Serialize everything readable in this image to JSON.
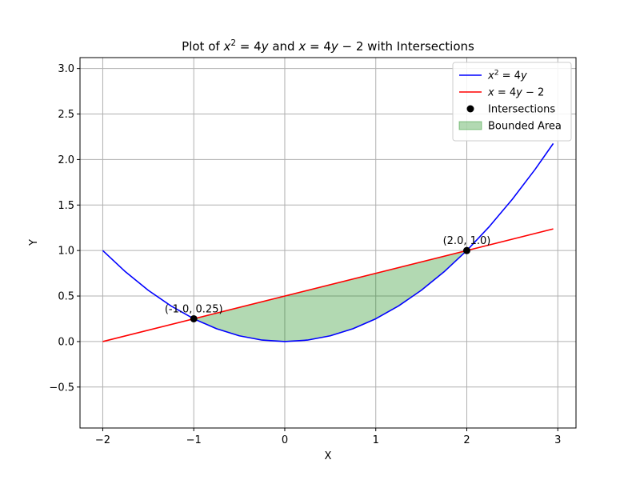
{
  "chart_data": {
    "type": "line",
    "title_parts": [
      {
        "text": "Plot of ",
        "style": "normal"
      },
      {
        "text": "x",
        "style": "italic"
      },
      {
        "text": "2",
        "style": "sup"
      },
      {
        "text": " = 4",
        "style": "normal"
      },
      {
        "text": "y",
        "style": "italic"
      },
      {
        "text": " and ",
        "style": "normal"
      },
      {
        "text": "x",
        "style": "italic"
      },
      {
        "text": " = 4",
        "style": "normal"
      },
      {
        "text": "y",
        "style": "italic"
      },
      {
        "text": " − 2 with Intersections",
        "style": "normal"
      }
    ],
    "xlabel": "X",
    "ylabel": "Y",
    "xlim": [
      -2.25,
      3.2
    ],
    "ylim": [
      -0.95,
      3.12
    ],
    "x_ticks": [
      {
        "value": -2,
        "label": "−2"
      },
      {
        "value": -1,
        "label": "−1"
      },
      {
        "value": 0,
        "label": "0"
      },
      {
        "value": 1,
        "label": "1"
      },
      {
        "value": 2,
        "label": "2"
      },
      {
        "value": 3,
        "label": "3"
      }
    ],
    "y_ticks": [
      {
        "value": -0.5,
        "label": "−0.5"
      },
      {
        "value": 0.0,
        "label": "0.0"
      },
      {
        "value": 0.5,
        "label": "0.5"
      },
      {
        "value": 1.0,
        "label": "1.0"
      },
      {
        "value": 1.5,
        "label": "1.5"
      },
      {
        "value": 2.0,
        "label": "2.0"
      },
      {
        "value": 2.5,
        "label": "2.5"
      },
      {
        "value": 3.0,
        "label": "3.0"
      }
    ],
    "grid": true,
    "legend_position": "top-right",
    "series": [
      {
        "id": "parabola",
        "legend_parts": [
          {
            "text": "x",
            "style": "italic"
          },
          {
            "text": "2",
            "style": "sup"
          },
          {
            "text": " = 4",
            "style": "normal"
          },
          {
            "text": "y",
            "style": "italic"
          }
        ],
        "color": "#0000ff",
        "x": [
          -2.0,
          -1.75,
          -1.5,
          -1.25,
          -1.0,
          -0.75,
          -0.5,
          -0.25,
          0.0,
          0.25,
          0.5,
          0.75,
          1.0,
          1.25,
          1.5,
          1.75,
          2.0,
          2.25,
          2.5,
          2.75,
          2.95
        ],
        "y": [
          1.0,
          0.766,
          0.563,
          0.391,
          0.25,
          0.141,
          0.063,
          0.016,
          0.0,
          0.016,
          0.063,
          0.141,
          0.25,
          0.391,
          0.563,
          0.766,
          1.0,
          1.266,
          1.563,
          1.891,
          2.176
        ]
      },
      {
        "id": "line",
        "legend_parts": [
          {
            "text": "x",
            "style": "italic"
          },
          {
            "text": " = 4",
            "style": "normal"
          },
          {
            "text": "y",
            "style": "italic"
          },
          {
            "text": " − 2",
            "style": "normal"
          }
        ],
        "color": "#ff0000",
        "x": [
          -2.0,
          2.95
        ],
        "y": [
          0.0,
          1.2375
        ]
      }
    ],
    "intersections": {
      "legend_label": "Intersections",
      "color": "#000000",
      "points": [
        {
          "x": -1.0,
          "y": 0.25,
          "label": "(-1.0, 0.25)"
        },
        {
          "x": 2.0,
          "y": 1.0,
          "label": "(2.0, 1.0)"
        }
      ]
    },
    "bounded_area": {
      "legend_label": "Bounded Area",
      "color": "#008000",
      "opacity": 0.3,
      "x_from": -1.0,
      "x_to": 2.0
    }
  }
}
